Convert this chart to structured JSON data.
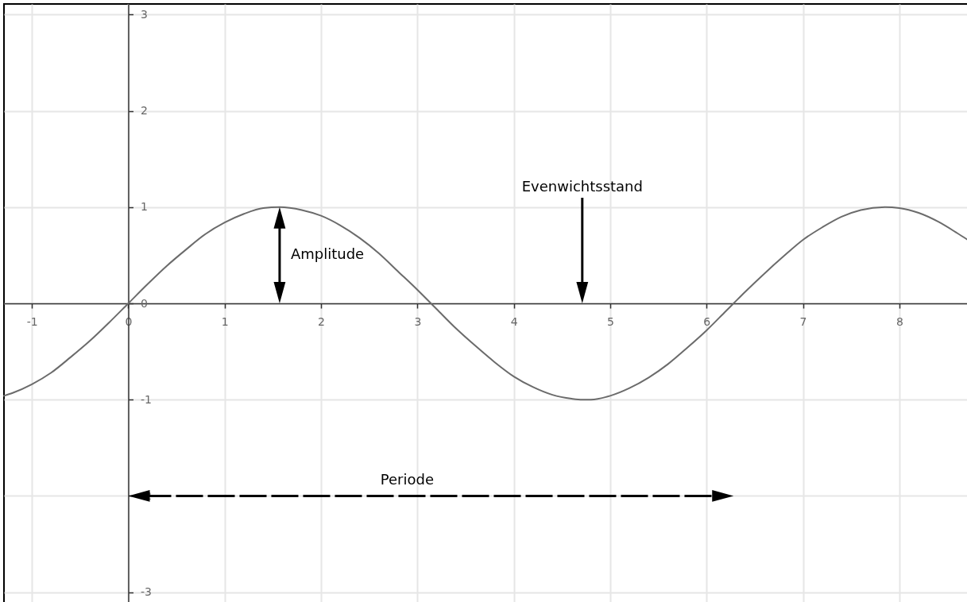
{
  "chart_data": {
    "type": "line",
    "x": [
      -1.29,
      -1.2,
      -1,
      -0.8,
      -0.6,
      -0.4,
      -0.2,
      0,
      0.2,
      0.4,
      0.6,
      0.8,
      1,
      1.2,
      1.4,
      1.57,
      1.8,
      2,
      2.2,
      2.4,
      2.6,
      2.8,
      3,
      3.14,
      3.2,
      3.4,
      3.6,
      3.8,
      4,
      4.2,
      4.4,
      4.6,
      4.71,
      4.8,
      5,
      5.2,
      5.4,
      5.6,
      5.8,
      6,
      6.2,
      6.28,
      6.4,
      6.6,
      6.8,
      7,
      7.2,
      7.4,
      7.6,
      7.85,
      8,
      8.2,
      8.4,
      8.6,
      8.71
    ],
    "series": [
      {
        "color": "#6b6b6b",
        "values": [
          -0.96,
          -0.93,
          -0.84,
          -0.72,
          -0.56,
          -0.39,
          -0.2,
          0,
          0.2,
          0.39,
          0.56,
          0.72,
          0.84,
          0.93,
          0.99,
          1,
          0.97,
          0.91,
          0.81,
          0.68,
          0.52,
          0.33,
          0.14,
          0,
          -0.06,
          -0.26,
          -0.44,
          -0.61,
          -0.76,
          -0.87,
          -0.95,
          -0.99,
          -1,
          -1,
          -0.96,
          -0.88,
          -0.77,
          -0.63,
          -0.46,
          -0.28,
          -0.08,
          0,
          0.12,
          0.31,
          0.49,
          0.66,
          0.79,
          0.9,
          0.97,
          1,
          0.99,
          0.94,
          0.85,
          0.73,
          0.66
        ]
      }
    ],
    "xlim": [
      -1.29,
      8.71
    ],
    "ylim": [
      -3.11,
      3.11
    ],
    "xticks": [
      -1,
      0,
      1,
      2,
      3,
      4,
      5,
      6,
      7,
      8
    ],
    "yticks": [
      -3,
      -2,
      -1,
      0,
      1,
      2,
      3
    ],
    "grid": true,
    "annotations": [
      {
        "text": "Amplitude",
        "x": 1.57,
        "y": 1
      },
      "Evenwichtsstand",
      "Periode"
    ]
  }
}
